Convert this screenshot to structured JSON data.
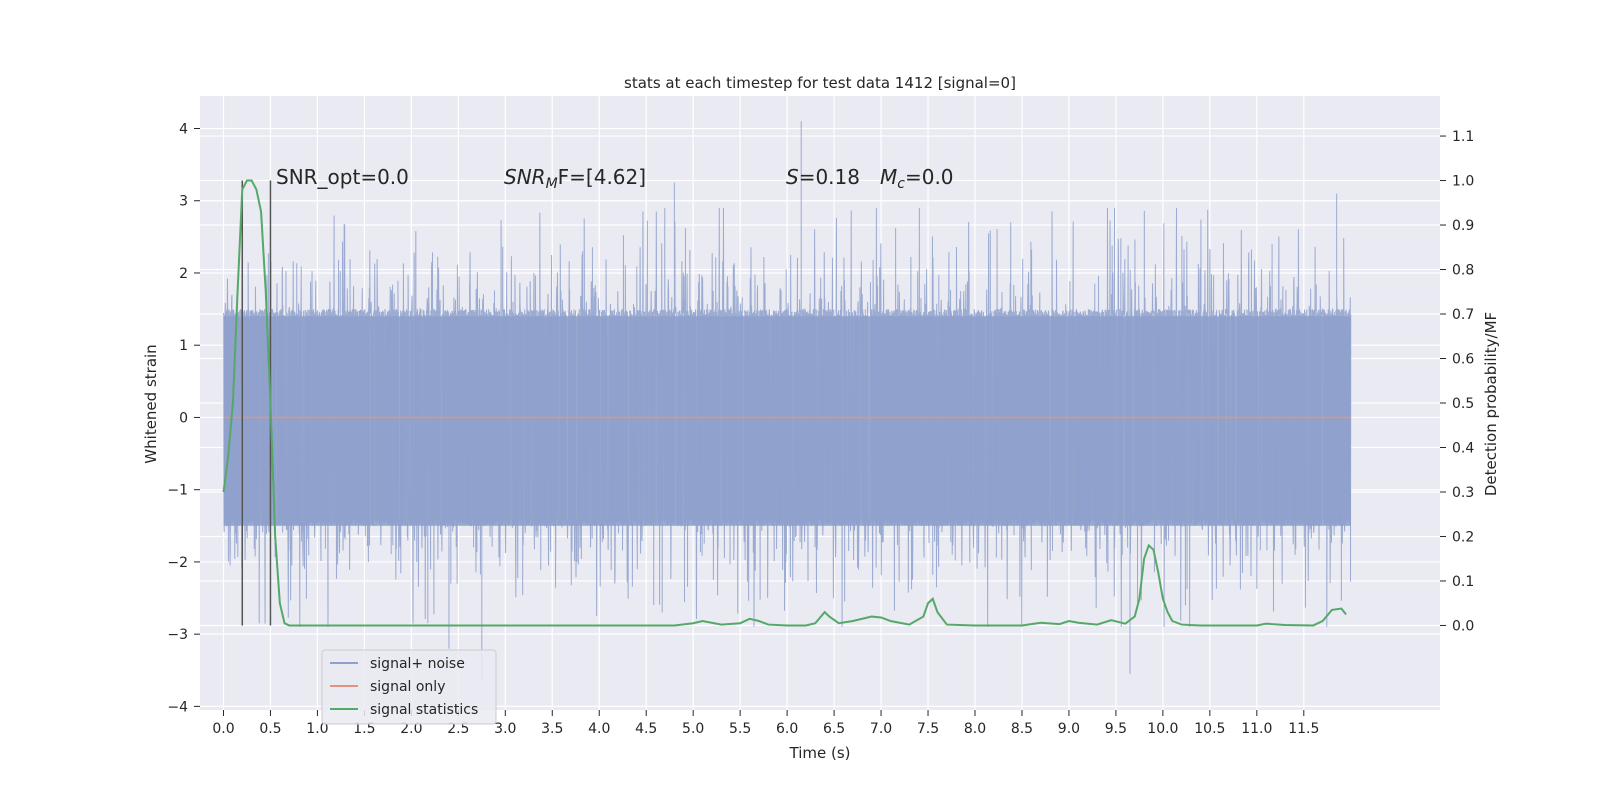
{
  "chart_data": {
    "type": "line",
    "title": "stats at each timestep for test data 1412 [signal=0]",
    "xlabel": "Time (s)",
    "ylabel_left": "Whitened strain",
    "ylabel_right": "Detection probability/MF",
    "xlim": [
      -0.25,
      12.95
    ],
    "ylim_left": [
      -4.05,
      4.45
    ],
    "ylim_right": [
      -0.19,
      1.19
    ],
    "grid": true,
    "legend_position": "lower-left",
    "x_ticks": [
      0.0,
      0.5,
      1.0,
      1.5,
      2.0,
      2.5,
      3.0,
      3.5,
      4.0,
      4.5,
      5.0,
      5.5,
      6.0,
      6.5,
      7.0,
      7.5,
      8.0,
      8.5,
      9.0,
      9.5,
      10.0,
      10.5,
      11.0,
      11.5
    ],
    "x_tick_labels": [
      "0.0",
      "0.5",
      "1.0",
      "1.5",
      "2.0",
      "2.5",
      "3.0",
      "3.5",
      "4.0",
      "4.5",
      "5.0",
      "5.5",
      "6.0",
      "6.5",
      "7.0",
      "7.5",
      "8.0",
      "8.5",
      "9.0",
      "9.5",
      "10.0",
      "10.5",
      "11.0",
      "11.5"
    ],
    "y_left_ticks": [
      4,
      3,
      2,
      1,
      0,
      -1,
      -2,
      -3,
      -4
    ],
    "y_left_tick_labels": [
      "4",
      "3",
      "2",
      "1",
      "0",
      "−1",
      "−2",
      "−3",
      "−4"
    ],
    "y_right_ticks": [
      1.1,
      1.0,
      0.9,
      0.8,
      0.7,
      0.6,
      0.5,
      0.4,
      0.3,
      0.2,
      0.1,
      0.0
    ],
    "y_right_tick_labels": [
      "1.1",
      "1.0",
      "0.9",
      "0.8",
      "0.7",
      "0.6",
      "0.5",
      "0.4",
      "0.3",
      "0.2",
      "0.1",
      "0.0"
    ],
    "annotations": {
      "snr_opt": "SNR_opt=0.0",
      "snr_mf_base": "SNR",
      "snr_mf_sub": "M",
      "snr_mf_rest": "F=[4.62]",
      "s_label": "S",
      "s_value": "=0.18",
      "mc_label": "M",
      "mc_sub": "c",
      "mc_value": "=0.0"
    },
    "vertical_markers_x": [
      0.2,
      0.5
    ],
    "series": [
      {
        "name": "signal+ noise",
        "color": "#8da0cb",
        "axis": "left",
        "description_values": {
          "x_start": 0.0,
          "x_end": 12.0,
          "sample_rate_hz": 400,
          "core_band": [
            -1.5,
            1.4
          ],
          "peaks": [
            [
              6.15,
              4.1
            ],
            [
              4.8,
              3.25
            ],
            [
              11.85,
              3.1
            ],
            [
              0.2,
              3.15
            ],
            [
              9.65,
              -3.55
            ],
            [
              2.75,
              -3.65
            ],
            [
              2.4,
              -3.2
            ]
          ]
        }
      },
      {
        "name": "signal only",
        "color": "#e1937e",
        "axis": "left",
        "x": [
          0.0,
          12.0
        ],
        "y": [
          0.0,
          0.0
        ]
      },
      {
        "name": "signal statistics",
        "color": "#55a868",
        "axis": "right",
        "x": [
          0.0,
          0.05,
          0.1,
          0.15,
          0.2,
          0.25,
          0.3,
          0.35,
          0.4,
          0.45,
          0.5,
          0.55,
          0.6,
          0.65,
          0.7,
          1.0,
          2.0,
          3.0,
          4.0,
          4.8,
          5.0,
          5.1,
          5.3,
          5.5,
          5.6,
          5.7,
          5.8,
          6.0,
          6.2,
          6.3,
          6.4,
          6.45,
          6.55,
          6.7,
          6.9,
          7.0,
          7.1,
          7.3,
          7.45,
          7.5,
          7.55,
          7.6,
          7.7,
          8.0,
          8.5,
          8.7,
          8.9,
          9.0,
          9.1,
          9.3,
          9.45,
          9.6,
          9.7,
          9.75,
          9.8,
          9.85,
          9.9,
          9.95,
          10.0,
          10.05,
          10.1,
          10.2,
          10.4,
          11.0,
          11.1,
          11.3,
          11.6,
          11.7,
          11.8,
          11.9,
          11.95
        ],
        "y": [
          0.3,
          0.38,
          0.5,
          0.75,
          0.98,
          1.0,
          1.0,
          0.98,
          0.93,
          0.75,
          0.5,
          0.2,
          0.05,
          0.005,
          0.0,
          0.0,
          0.0,
          0.0,
          0.0,
          0.0,
          0.005,
          0.01,
          0.002,
          0.005,
          0.015,
          0.01,
          0.002,
          0.0,
          0.0,
          0.005,
          0.03,
          0.02,
          0.005,
          0.01,
          0.02,
          0.018,
          0.01,
          0.002,
          0.02,
          0.05,
          0.06,
          0.03,
          0.002,
          0.0,
          0.0,
          0.006,
          0.003,
          0.01,
          0.006,
          0.002,
          0.012,
          0.004,
          0.02,
          0.06,
          0.15,
          0.18,
          0.17,
          0.12,
          0.06,
          0.03,
          0.01,
          0.002,
          0.0,
          0.0,
          0.004,
          0.001,
          0.0,
          0.01,
          0.035,
          0.038,
          0.025
        ]
      }
    ]
  }
}
